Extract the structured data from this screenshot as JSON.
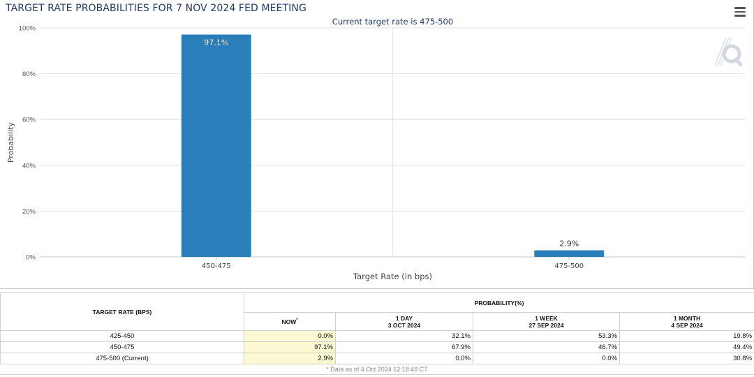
{
  "page": {
    "title": "TARGET RATE PROBABILITIES FOR 7 NOV 2024 FED MEETING"
  },
  "chart_data": {
    "type": "bar",
    "title": "TARGET RATE PROBABILITIES FOR 7 NOV 2024 FED MEETING",
    "subtitle": "Current target rate is 475-500",
    "xlabel": "Target Rate (in bps)",
    "ylabel": "Probability",
    "categories": [
      "450-475",
      "475-500"
    ],
    "values": [
      97.1,
      2.9
    ],
    "data_labels": [
      "97.1%",
      "2.9%"
    ],
    "ylim": [
      0,
      100
    ],
    "yticks": [
      0,
      20,
      40,
      60,
      80,
      100
    ],
    "ytick_labels": [
      "0%",
      "20%",
      "40%",
      "60%",
      "80%",
      "100%"
    ],
    "grid": true,
    "bar_color": "#2a7fba"
  },
  "table": {
    "header_rate": "TARGET RATE (BPS)",
    "header_prob": "PROBABILITY(%)",
    "columns": [
      {
        "line1": "NOW",
        "line2": "",
        "marker": "*"
      },
      {
        "line1": "1 DAY",
        "line2": "3 OCT 2024",
        "marker": ""
      },
      {
        "line1": "1 WEEK",
        "line2": "27 SEP 2024",
        "marker": ""
      },
      {
        "line1": "1 MONTH",
        "line2": "4 SEP 2024",
        "marker": ""
      }
    ],
    "rows": [
      {
        "rate": "425-450",
        "values": [
          "0.0%",
          "32.1%",
          "53.3%",
          "19.8%"
        ]
      },
      {
        "rate": "450-475",
        "values": [
          "97.1%",
          "67.9%",
          "46.7%",
          "49.4%"
        ]
      },
      {
        "rate": "475-500 (Current)",
        "values": [
          "2.9%",
          "0.0%",
          "0.0%",
          "30.8%"
        ]
      }
    ],
    "footnote": "* Data as of 4 Oct 2024 12:18:48 CT"
  },
  "colors": {
    "title": "#1f3868",
    "bar": "#2a7fba",
    "now_highlight": "#fbf8d4"
  },
  "icons": {
    "menu": "hamburger-menu-icon",
    "watermark": "q-logo-icon"
  }
}
